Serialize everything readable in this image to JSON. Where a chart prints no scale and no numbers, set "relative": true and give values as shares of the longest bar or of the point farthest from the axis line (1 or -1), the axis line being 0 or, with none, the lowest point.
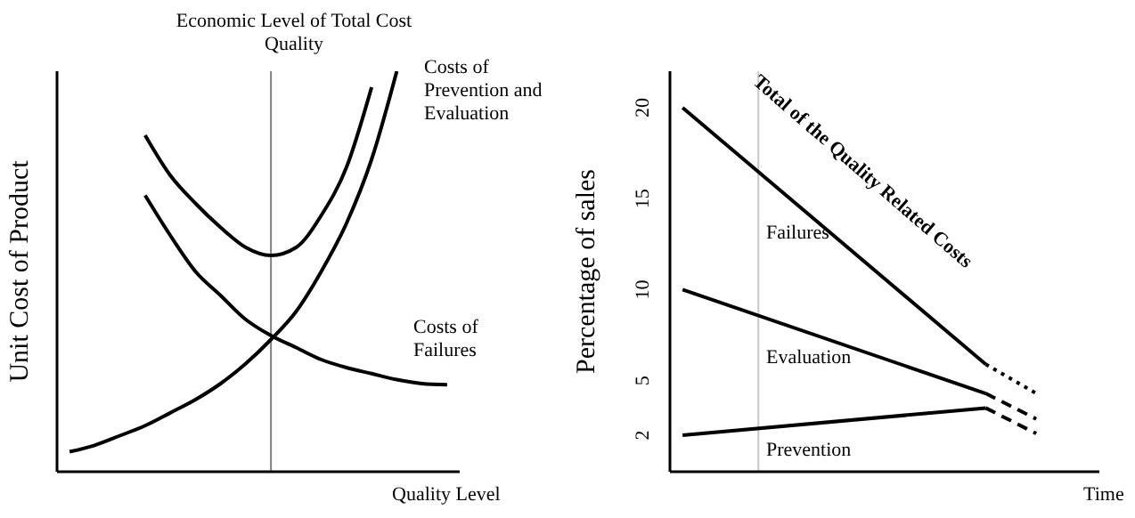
{
  "chart_data": [
    {
      "type": "line",
      "relative": true,
      "xlabel": "Quality Level",
      "ylabel": "Unit Cost of Product",
      "tick_labels": false,
      "marker": "none",
      "categories": [
        null,
        null,
        null,
        null,
        null,
        null,
        null,
        null,
        null,
        null,
        null,
        null,
        null,
        null,
        null,
        null
      ],
      "series": [
        {
          "color": "#000000",
          "values": [
            0.05,
            0.066,
            0.09,
            0.115,
            0.147,
            0.18,
            0.22,
            0.27,
            0.33,
            0.4,
            0.5,
            0.62,
            0.78,
            1,
            null,
            null
          ]
        },
        {
          "color": "#000000",
          "values": [
            null,
            null,
            null,
            0.84,
            0.74,
            0.67,
            0.61,
            0.56,
            0.54,
            0.56,
            0.64,
            0.76,
            0.96,
            null,
            null,
            null
          ]
        },
        {
          "color": "#000000",
          "values": [
            null,
            null,
            null,
            0.69,
            0.59,
            0.5,
            0.44,
            0.38,
            0.34,
            0.31,
            0.28,
            0.26,
            0.245,
            0.23,
            0.22,
            0.217
          ]
        }
      ],
      "annotations": [
        "Economic Level of  Total Cost Quality",
        "Costs of Prevention and Evaluation",
        "Costs of Failures"
      ]
    },
    {
      "type": "line",
      "xlabel": "Time",
      "ylabel": "Percentage of sales",
      "tick_labels": "y",
      "marker": "none",
      "ylim": [
        0,
        22
      ],
      "yticks": [
        2,
        5,
        10,
        15,
        20
      ],
      "categories": [
        null,
        null,
        null,
        null,
        null,
        null,
        null,
        null,
        null,
        null,
        null,
        null,
        null,
        null,
        null,
        null,
        null
      ],
      "series": [
        {
          "color": "#000000",
          "line_style": "solid",
          "values": [
            20,
            null,
            null,
            null,
            null,
            null,
            null,
            null,
            null,
            null,
            null,
            null,
            5.9,
            null,
            null,
            null,
            null
          ]
        },
        {
          "color": "#000000",
          "line_style": "dotted",
          "values": [
            null,
            null,
            null,
            null,
            null,
            null,
            null,
            null,
            null,
            null,
            null,
            null,
            5.9,
            null,
            4.3,
            null,
            null
          ]
        },
        {
          "color": "#000000",
          "line_style": "solid",
          "values": [
            10,
            null,
            null,
            null,
            null,
            null,
            null,
            null,
            null,
            null,
            null,
            null,
            4.3,
            null,
            null,
            null,
            null
          ]
        },
        {
          "color": "#000000",
          "line_style": "dashed",
          "values": [
            null,
            null,
            null,
            null,
            null,
            null,
            null,
            null,
            null,
            null,
            null,
            null,
            4.3,
            null,
            2.9,
            null,
            null
          ]
        },
        {
          "color": "#000000",
          "line_style": "solid",
          "values": [
            2,
            null,
            null,
            null,
            null,
            null,
            null,
            null,
            null,
            null,
            null,
            null,
            3.5,
            null,
            null,
            null,
            null
          ]
        },
        {
          "color": "#000000",
          "line_style": "dashed",
          "values": [
            null,
            null,
            null,
            null,
            null,
            null,
            null,
            null,
            null,
            null,
            null,
            null,
            3.5,
            null,
            2.1,
            null,
            null
          ]
        }
      ],
      "annotations": [
        "Total of the Quality Related Costs",
        "Failures",
        "Evaluation",
        "Prevention"
      ]
    }
  ]
}
